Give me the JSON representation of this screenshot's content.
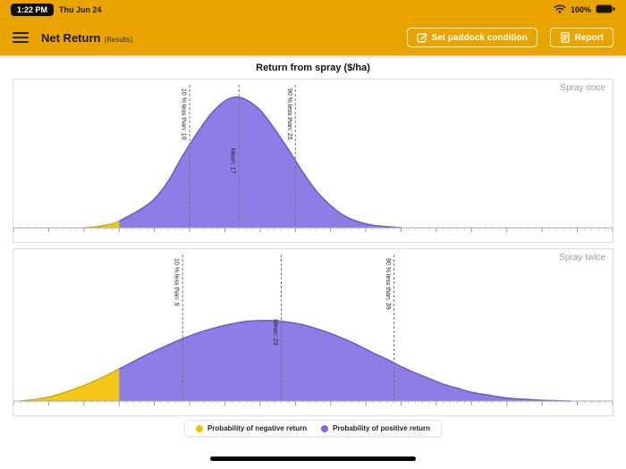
{
  "status_bar": {
    "time": "1:22 PM",
    "date": "Thu Jun 24",
    "battery_percent": "100%"
  },
  "header": {
    "title": "Net Return",
    "subtitle": "(Results)",
    "buttons": [
      {
        "label": "Set paddock condition",
        "icon": "edit-square-icon"
      },
      {
        "label": "Report",
        "icon": "document-icon"
      }
    ]
  },
  "page": {
    "chart_title": "Return from spray ($/ha)"
  },
  "legend": {
    "items": [
      {
        "label": "Probability of negative return",
        "color": "#F2C200"
      },
      {
        "label": "Probability of positive return",
        "color": "#7B6CE8"
      }
    ]
  },
  "colors": {
    "header_bar": "#E9A400",
    "positive_fill": "#8273E3",
    "positive_stroke": "#6A5AD0",
    "negative_fill": "#F5C71A",
    "negative_stroke": "#D9A800",
    "marker_line": "#777777"
  },
  "chart_data": [
    {
      "type": "area",
      "title": "Spray once",
      "x_unit": "$/ha",
      "x_domain": [
        -15,
        70
      ],
      "height_fraction": 0.95,
      "negative_threshold": 0,
      "markers": [
        {
          "value": 10,
          "label": "10 % less than: 10",
          "label_pos": "top"
        },
        {
          "value": 17,
          "label": "Mean: 17",
          "label_pos": "middle"
        },
        {
          "value": 25,
          "label": "90 % less than: 25",
          "label_pos": "top"
        }
      ],
      "points": [
        [
          -5,
          0
        ],
        [
          -3,
          0.01
        ],
        [
          -1,
          0.03
        ],
        [
          0,
          0.05
        ],
        [
          1,
          0.08
        ],
        [
          3,
          0.14
        ],
        [
          5,
          0.22
        ],
        [
          7,
          0.36
        ],
        [
          9,
          0.55
        ],
        [
          11,
          0.72
        ],
        [
          13,
          0.87
        ],
        [
          15,
          0.97
        ],
        [
          16.5,
          1
        ],
        [
          18,
          0.98
        ],
        [
          20,
          0.9
        ],
        [
          22,
          0.76
        ],
        [
          24,
          0.6
        ],
        [
          26,
          0.43
        ],
        [
          28,
          0.28
        ],
        [
          30,
          0.17
        ],
        [
          32,
          0.09
        ],
        [
          34,
          0.045
        ],
        [
          36,
          0.02
        ],
        [
          38,
          0.008
        ],
        [
          40,
          0
        ]
      ]
    },
    {
      "type": "area",
      "title": "Spray twice",
      "x_unit": "$/ha",
      "x_domain": [
        -15,
        70
      ],
      "height_fraction": 0.57,
      "negative_threshold": 0,
      "markers": [
        {
          "value": 9,
          "label": "10 % less than: 9",
          "label_pos": "top"
        },
        {
          "value": 23,
          "label": "Mean: 23",
          "label_pos": "middle"
        },
        {
          "value": 39,
          "label": "90 % less than: 39",
          "label_pos": "top"
        }
      ],
      "points": [
        [
          -14,
          0
        ],
        [
          -12,
          0.02
        ],
        [
          -10,
          0.05
        ],
        [
          -8,
          0.1
        ],
        [
          -6,
          0.16
        ],
        [
          -4,
          0.23
        ],
        [
          -2,
          0.31
        ],
        [
          0,
          0.4
        ],
        [
          2,
          0.49
        ],
        [
          4,
          0.58
        ],
        [
          6,
          0.66
        ],
        [
          8,
          0.74
        ],
        [
          10,
          0.81
        ],
        [
          12,
          0.87
        ],
        [
          14,
          0.92
        ],
        [
          16,
          0.96
        ],
        [
          18,
          0.99
        ],
        [
          20,
          1
        ],
        [
          22,
          1
        ],
        [
          24,
          0.98
        ],
        [
          26,
          0.95
        ],
        [
          28,
          0.9
        ],
        [
          30,
          0.84
        ],
        [
          32,
          0.77
        ],
        [
          34,
          0.69
        ],
        [
          36,
          0.6
        ],
        [
          38,
          0.52
        ],
        [
          40,
          0.43
        ],
        [
          42,
          0.35
        ],
        [
          44,
          0.28
        ],
        [
          46,
          0.21
        ],
        [
          48,
          0.16
        ],
        [
          50,
          0.11
        ],
        [
          52,
          0.08
        ],
        [
          54,
          0.05
        ],
        [
          56,
          0.03
        ],
        [
          58,
          0.02
        ],
        [
          60,
          0.01
        ],
        [
          62,
          0.005
        ],
        [
          64,
          0
        ]
      ]
    }
  ]
}
